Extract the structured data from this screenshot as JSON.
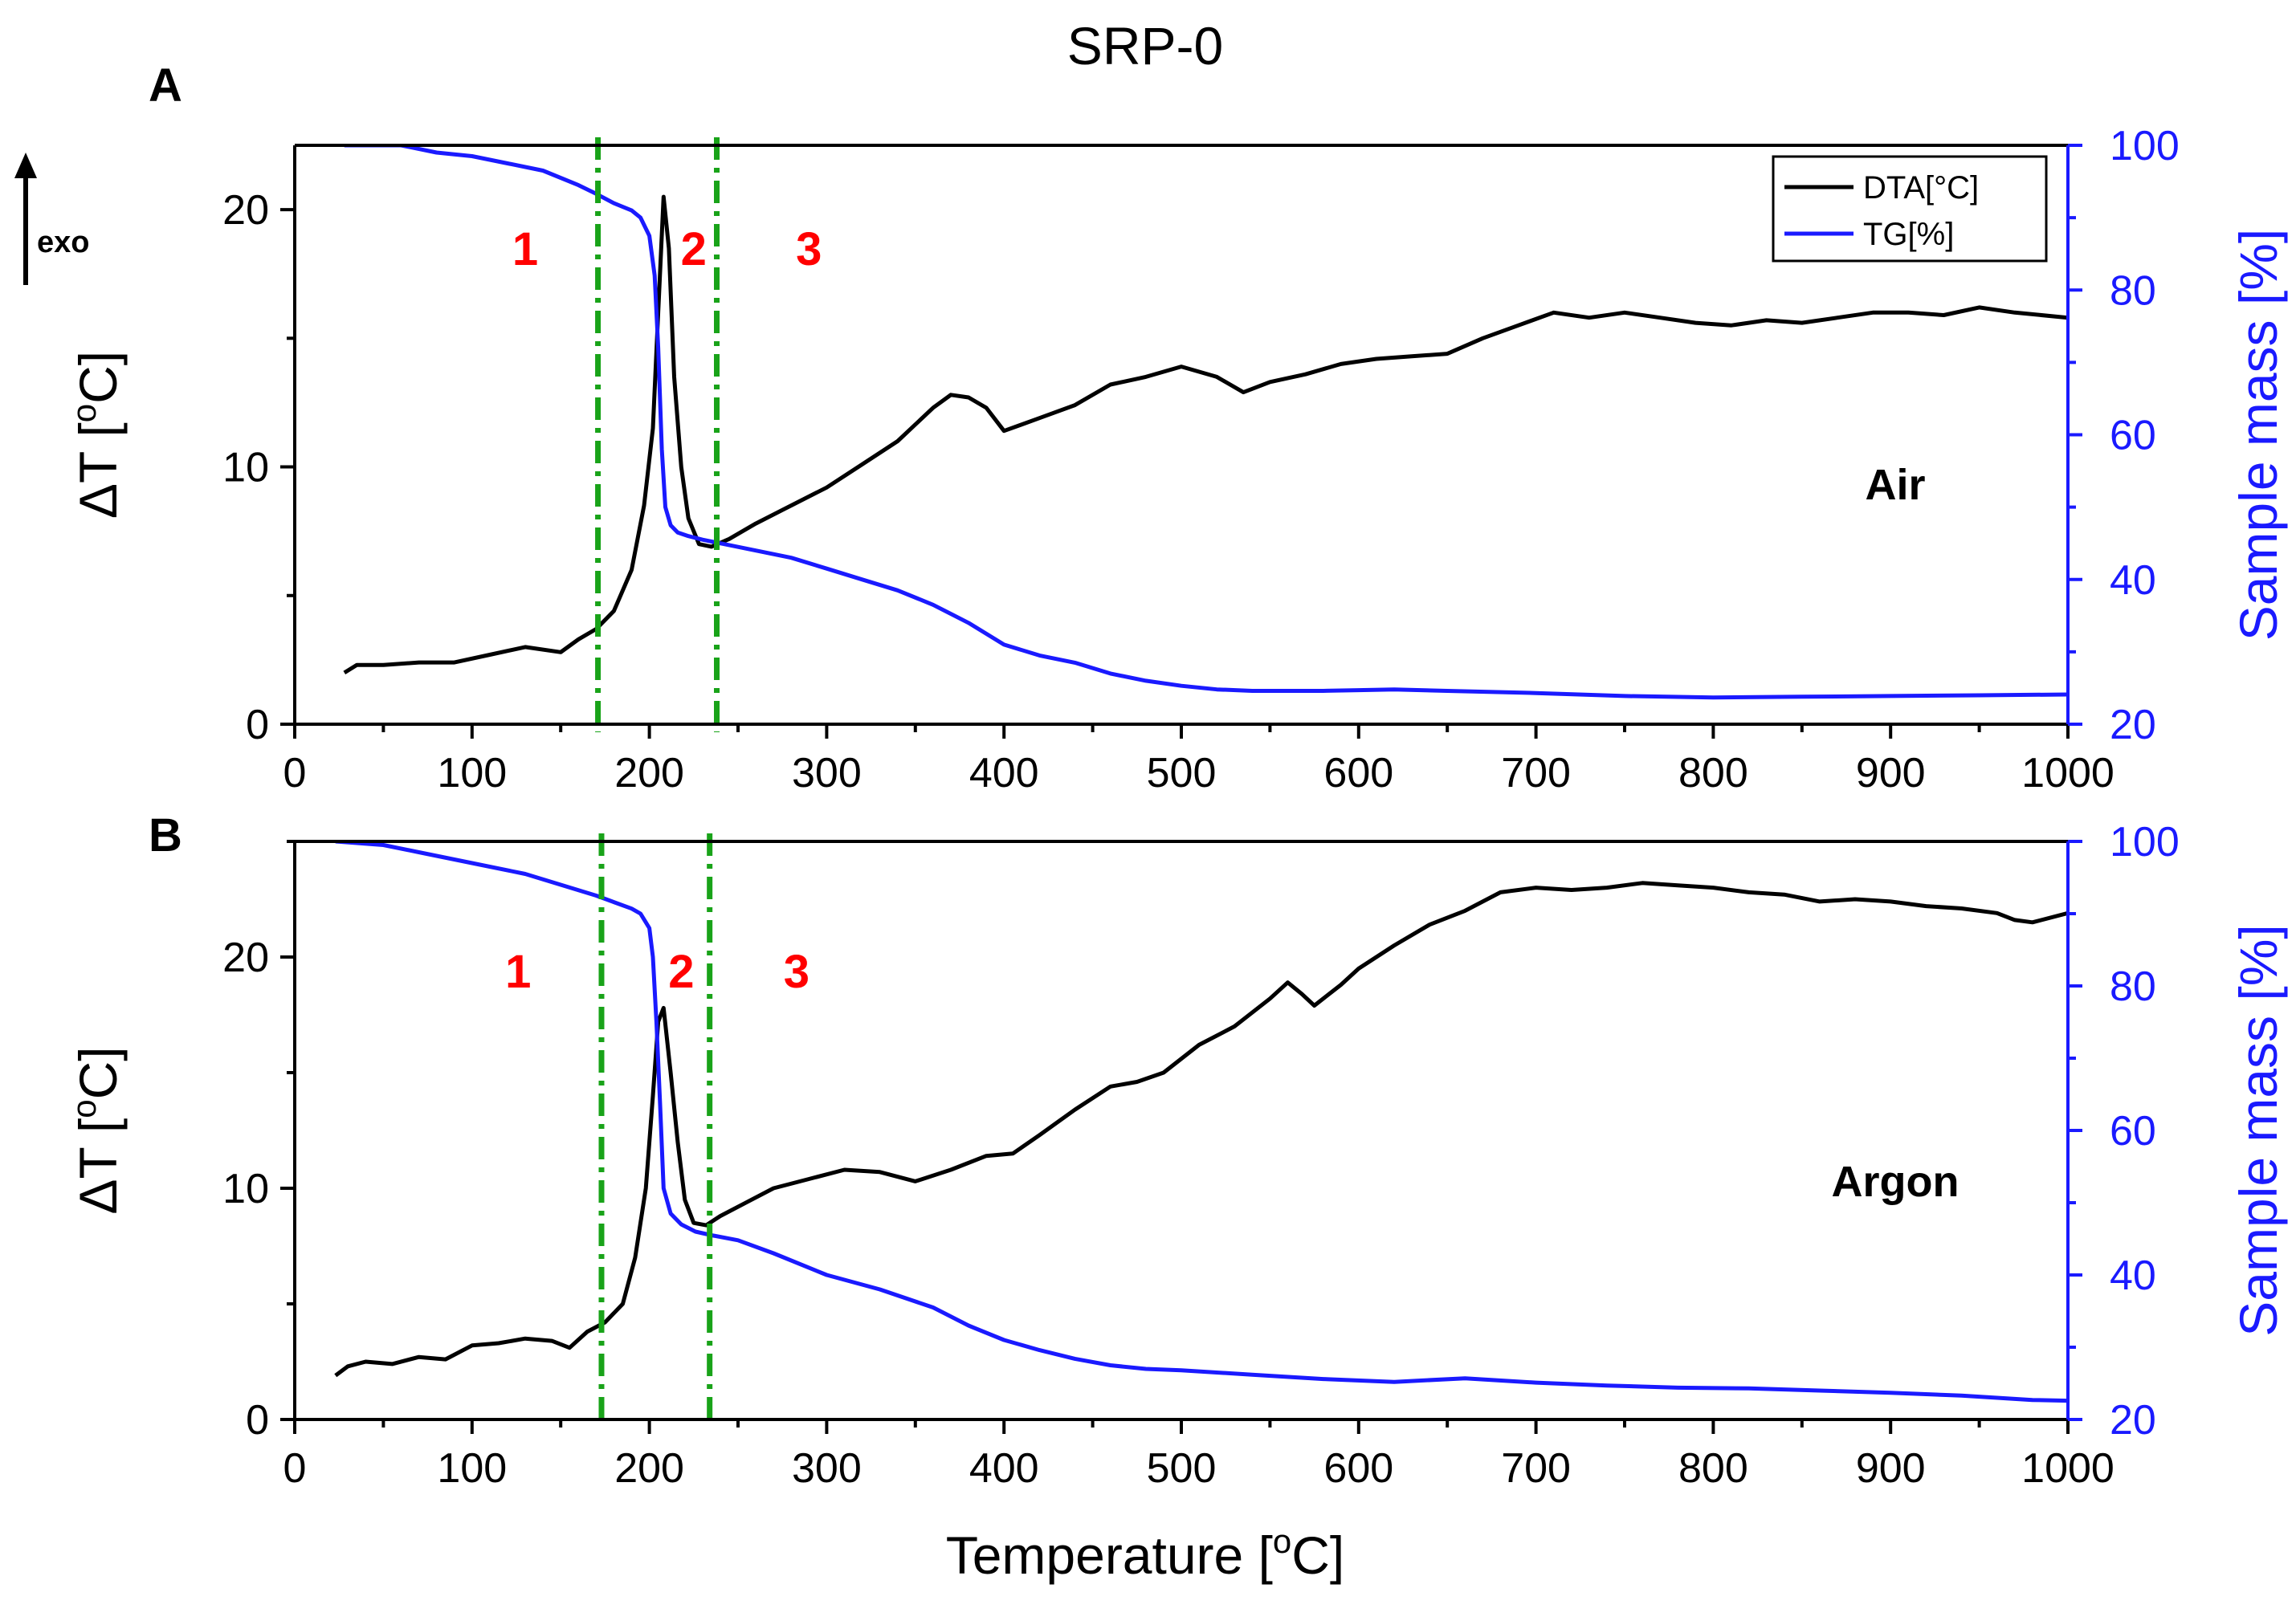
{
  "chart_data": {
    "title": "SRP-0",
    "exo_label": "exo",
    "xlabel": "Temperature [",
    "xlabel_deg": "o",
    "xlabel_unit": "C]",
    "xlim": [
      0,
      1000
    ],
    "xticks": [
      "0",
      "100",
      "200",
      "300",
      "400",
      "500",
      "600",
      "700",
      "800",
      "900",
      "1000"
    ],
    "colors": {
      "dta": "#000000",
      "tg": "#1a1aff",
      "boundary": "#19a319",
      "region": "#ff0000"
    },
    "panels": [
      {
        "type": "line",
        "letter": "A",
        "atmosphere": "Air",
        "ylabel_left": "ΔT [°C]",
        "ylabel_left_prefix": "ΔT [",
        "ylabel_left_deg": "o",
        "ylabel_left_unit": "C]",
        "ylabel_right": "Sample mass [%]",
        "ylim_left": [
          0,
          22.5
        ],
        "ylim_right": [
          20,
          100
        ],
        "yticks_left": [
          "0",
          "10",
          "20"
        ],
        "yticks_right": [
          "20",
          "40",
          "60",
          "80",
          "100"
        ],
        "legend": [
          "DTA[°C]",
          "TG[%]"
        ],
        "region_labels": [
          "1",
          "2",
          "3"
        ],
        "region_label_x": [
          130,
          225,
          290
        ],
        "boundaries": [
          171,
          238
        ],
        "series": [
          {
            "name": "DTA[°C]",
            "x": [
              28,
              35,
              50,
              70,
              90,
              110,
              130,
              150,
              160,
              170,
              180,
              190,
              197,
              202,
              205,
              208,
              211,
              214,
              218,
              222,
              228,
              235,
              245,
              260,
              280,
              300,
              320,
              340,
              360,
              370,
              380,
              390,
              400,
              420,
              440,
              460,
              480,
              500,
              520,
              535,
              550,
              570,
              590,
              610,
              630,
              650,
              670,
              690,
              710,
              730,
              750,
              770,
              790,
              810,
              830,
              850,
              870,
              890,
              910,
              930,
              950,
              970,
              1000
            ],
            "y": [
              2.0,
              2.3,
              2.3,
              2.4,
              2.4,
              2.7,
              3.0,
              2.8,
              3.3,
              3.7,
              4.4,
              6.0,
              8.5,
              11.5,
              16.0,
              20.5,
              18.5,
              13.5,
              10.0,
              8.0,
              7.0,
              6.9,
              7.2,
              7.8,
              8.5,
              9.2,
              10.1,
              11.0,
              12.3,
              12.8,
              12.7,
              12.3,
              11.4,
              11.9,
              12.4,
              13.2,
              13.5,
              13.9,
              13.5,
              12.9,
              13.3,
              13.6,
              14.0,
              14.2,
              14.3,
              14.4,
              15.0,
              15.5,
              16.0,
              15.8,
              16.0,
              15.8,
              15.6,
              15.5,
              15.7,
              15.6,
              15.8,
              16.0,
              16.0,
              15.9,
              16.2,
              16.0,
              15.8
            ]
          },
          {
            "name": "TG[%]",
            "x": [
              28,
              60,
              80,
              100,
              120,
              140,
              160,
              170,
              180,
              190,
              195,
              200,
              203,
              205,
              207,
              209,
              212,
              216,
              222,
              230,
              240,
              260,
              280,
              300,
              320,
              340,
              360,
              380,
              400,
              420,
              440,
              460,
              480,
              500,
              520,
              540,
              560,
              580,
              600,
              620,
              650,
              700,
              750,
              800,
              850,
              900,
              950,
              1000
            ],
            "y": [
              100,
              100,
              99,
              98.5,
              97.5,
              96.5,
              94.5,
              93.3,
              92,
              91,
              90,
              87.5,
              82,
              72,
              58,
              50,
              47.5,
              46.5,
              46,
              45.5,
              45,
              44,
              43,
              41.5,
              40,
              38.5,
              36.5,
              34,
              31,
              29.5,
              28.5,
              27,
              26,
              25.3,
              24.8,
              24.6,
              24.6,
              24.6,
              24.7,
              24.8,
              24.6,
              24.3,
              23.9,
              23.7,
              23.8,
              23.9,
              24.0,
              24.1
            ]
          }
        ]
      },
      {
        "type": "line",
        "letter": "B",
        "atmosphere": "Argon",
        "ylabel_left": "ΔT [°C]",
        "ylabel_left_prefix": "ΔT [",
        "ylabel_left_deg": "o",
        "ylabel_left_unit": "C]",
        "ylabel_right": "Sample mass [%]",
        "ylim_left": [
          0,
          25
        ],
        "ylim_right": [
          20,
          100
        ],
        "yticks_left": [
          "0",
          "10",
          "20"
        ],
        "yticks_right": [
          "20",
          "40",
          "60",
          "80",
          "100"
        ],
        "legend": [],
        "region_labels": [
          "1",
          "2",
          "3"
        ],
        "region_label_x": [
          126,
          218,
          283
        ],
        "boundaries": [
          173,
          234
        ],
        "series": [
          {
            "name": "DTA[°C]",
            "x": [
              23,
              30,
              40,
              55,
              70,
              85,
              100,
              115,
              130,
              145,
              155,
              165,
              175,
              185,
              192,
              198,
              202,
              205,
              208,
              212,
              216,
              220,
              225,
              232,
              240,
              255,
              270,
              290,
              310,
              330,
              350,
              370,
              390,
              405,
              420,
              440,
              460,
              475,
              490,
              510,
              530,
              550,
              560,
              568,
              575,
              590,
              600,
              620,
              640,
              660,
              680,
              700,
              720,
              740,
              760,
              780,
              800,
              820,
              840,
              860,
              880,
              900,
              920,
              940,
              960,
              970,
              980,
              1000
            ],
            "y": [
              1.9,
              2.3,
              2.5,
              2.4,
              2.7,
              2.6,
              3.2,
              3.3,
              3.5,
              3.4,
              3.1,
              3.8,
              4.2,
              5.0,
              7.0,
              10.0,
              14.0,
              17.2,
              17.8,
              15.0,
              12.0,
              9.5,
              8.5,
              8.4,
              8.8,
              9.4,
              10.0,
              10.4,
              10.8,
              10.7,
              10.3,
              10.8,
              11.4,
              11.5,
              12.3,
              13.4,
              14.4,
              14.6,
              15.0,
              16.2,
              17.0,
              18.2,
              18.9,
              18.4,
              17.9,
              18.8,
              19.5,
              20.5,
              21.4,
              22.0,
              22.8,
              23.0,
              22.9,
              23.0,
              23.2,
              23.1,
              23.0,
              22.8,
              22.7,
              22.4,
              22.5,
              22.4,
              22.2,
              22.1,
              21.9,
              21.6,
              21.5,
              21.9
            ]
          },
          {
            "name": "TG[%]",
            "x": [
              23,
              50,
              70,
              100,
              130,
              150,
              170,
              180,
              190,
              195,
              200,
              202,
              204,
              206,
              208,
              212,
              218,
              226,
              235,
              250,
              270,
              300,
              330,
              360,
              380,
              400,
              420,
              440,
              460,
              480,
              500,
              540,
              580,
              620,
              660,
              700,
              740,
              780,
              820,
              860,
              900,
              940,
              960,
              980,
              1000
            ],
            "y": [
              100,
              99.5,
              98.5,
              97,
              95.5,
              94,
              92.5,
              91.6,
              90.7,
              90,
              88,
              84,
              75,
              64,
              52,
              48.5,
              47,
              46,
              45.5,
              44.8,
              43,
              40,
              38,
              35.5,
              33,
              31,
              29.6,
              28.4,
              27.5,
              27,
              26.8,
              26.2,
              25.6,
              25.2,
              25.7,
              25.1,
              24.7,
              24.4,
              24.3,
              24.0,
              23.7,
              23.3,
              23.0,
              22.7,
              22.6
            ]
          }
        ]
      }
    ]
  }
}
